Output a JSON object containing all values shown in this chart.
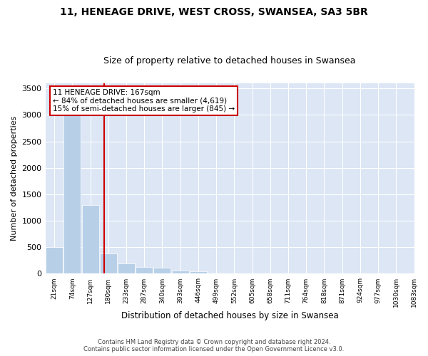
{
  "title": "11, HENEAGE DRIVE, WEST CROSS, SWANSEA, SA3 5BR",
  "subtitle": "Size of property relative to detached houses in Swansea",
  "xlabel": "Distribution of detached houses by size in Swansea",
  "ylabel": "Number of detached properties",
  "footer1": "Contains HM Land Registry data © Crown copyright and database right 2024.",
  "footer2": "Contains public sector information licensed under the Open Government Licence v3.0.",
  "annotation_title": "11 HENEAGE DRIVE: 167sqm",
  "annotation_line1": "← 84% of detached houses are smaller (4,619)",
  "annotation_line2": "15% of semi-detached houses are larger (845) →",
  "property_size_bin": 2.755,
  "bar_color": "#b8cfe8",
  "line_color": "#cc0000",
  "annotation_box_color": "#cc0000",
  "background_color": "#dce6f5",
  "bin_labels": [
    "21sqm",
    "74sqm",
    "127sqm",
    "180sqm",
    "233sqm",
    "287sqm",
    "340sqm",
    "393sqm",
    "446sqm",
    "499sqm",
    "552sqm",
    "605sqm",
    "658sqm",
    "711sqm",
    "764sqm",
    "818sqm",
    "871sqm",
    "924sqm",
    "977sqm",
    "1030sqm",
    "1083sqm"
  ],
  "counts": [
    500,
    3000,
    1300,
    380,
    200,
    130,
    110,
    65,
    45,
    0,
    0,
    0,
    0,
    0,
    0,
    0,
    0,
    0,
    0,
    0
  ],
  "ylim": [
    0,
    3600
  ],
  "yticks": [
    0,
    500,
    1000,
    1500,
    2000,
    2500,
    3000,
    3500
  ]
}
